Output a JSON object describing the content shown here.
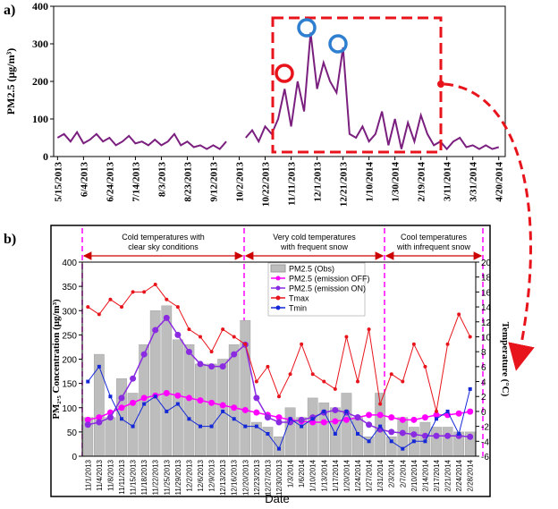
{
  "chart_data": [
    {
      "type": "line",
      "panel": "a)",
      "ylabel": "PM2.5 (μg/m³)",
      "x": [
        "5/15/2013",
        "5/20/2013",
        "5/25/2013",
        "5/30/2013",
        "6/4/2013",
        "6/9/2013",
        "6/14/2013",
        "6/19/2013",
        "6/24/2013",
        "6/29/2013",
        "7/4/2013",
        "7/9/2013",
        "7/14/2013",
        "7/19/2013",
        "7/24/2013",
        "7/29/2013",
        "8/3/2013",
        "8/8/2013",
        "8/13/2013",
        "8/18/2013",
        "8/23/2013",
        "8/28/2013",
        "9/2/2013",
        "9/7/2013",
        "9/12/2013",
        "9/17/2013",
        "9/22/2013",
        "9/27/2013",
        "10/2/2013",
        "10/7/2013",
        "10/12/2013",
        "10/17/2013",
        "10/22/2013",
        "10/27/2013",
        "11/1/2013",
        "11/6/2013",
        "11/11/2013",
        "11/16/2013",
        "11/21/2013",
        "11/26/2013",
        "12/1/2013",
        "12/6/2013",
        "12/11/2013",
        "12/16/2013",
        "12/21/2013",
        "12/26/2013",
        "12/31/2013",
        "1/5/2014",
        "1/10/2014",
        "1/15/2014",
        "1/20/2014",
        "1/25/2014",
        "1/30/2014",
        "2/4/2014",
        "2/9/2014",
        "2/14/2014",
        "2/19/2014",
        "2/24/2014",
        "3/1/2014",
        "3/6/2014",
        "3/11/2014",
        "3/16/2014",
        "3/21/2014",
        "3/26/2014",
        "3/31/2014",
        "4/5/2014",
        "4/10/2014",
        "4/15/2014",
        "4/20/2014"
      ],
      "series": [
        {
          "color": "#7b1f7f",
          "values": [
            50,
            60,
            40,
            65,
            35,
            45,
            60,
            40,
            50,
            30,
            40,
            55,
            35,
            40,
            30,
            45,
            30,
            40,
            60,
            30,
            40,
            25,
            30,
            20,
            30,
            20,
            40,
            null,
            null,
            50,
            70,
            40,
            80,
            60,
            100,
            180,
            80,
            200,
            120,
            330,
            180,
            250,
            200,
            170,
            290,
            60,
            50,
            80,
            40,
            60,
            120,
            30,
            100,
            20,
            90,
            40,
            110,
            60,
            30,
            40,
            20,
            40,
            50,
            25,
            30,
            20,
            30,
            20,
            25
          ]
        }
      ],
      "xlim": [
        "5/12/2013",
        "4/25/2014"
      ],
      "xticks": [
        "5/15/2013",
        "6/4/2013",
        "6/24/2013",
        "7/14/2013",
        "8/3/2013",
        "8/23/2013",
        "9/12/2013",
        "10/2/2013",
        "10/22/2013",
        "11/11/2013",
        "12/1/2013",
        "12/21/2013",
        "1/10/2014",
        "1/30/2014",
        "2/19/2014",
        "3/11/2014",
        "3/31/2014",
        "4/20/2014"
      ],
      "ylim": [
        0,
        400
      ],
      "yticks": [
        0,
        100,
        200,
        300,
        400
      ]
    },
    {
      "type": "combo",
      "panel": "b)",
      "ylabel": "PM₂.₅ Concentration (μg/m³)",
      "y2label": "Temperature (°C)",
      "xlabel": "Date",
      "annotations": [
        [
          "Cold temperatures with",
          "clear sky conditions"
        ],
        [
          "Very cold temperatures",
          "with frequent snow"
        ],
        [
          "Cool temperatures",
          "with infrequent snow"
        ]
      ],
      "categories": [
        "11/1/2013",
        "11/4/2013",
        "11/8/2013",
        "11/11/2013",
        "11/15/2013",
        "11/18/2013",
        "11/22/2013",
        "11/25/2013",
        "11/29/2013",
        "12/2/2013",
        "12/6/2013",
        "12/9/2013",
        "12/13/2013",
        "12/16/2013",
        "12/20/2013",
        "12/23/2013",
        "12/27/2013",
        "12/30/2013",
        "1/3/2014",
        "1/6/2014",
        "1/10/2014",
        "1/13/2014",
        "1/17/2014",
        "1/20/2014",
        "1/24/2014",
        "1/27/2014",
        "1/31/2014",
        "2/3/2014",
        "2/7/2014",
        "2/10/2014",
        "2/14/2014",
        "2/17/2014",
        "2/21/2014",
        "2/24/2014",
        "2/28/2014"
      ],
      "series": [
        {
          "name": "PM2.5 (Obs)",
          "type": "bar",
          "color": "#bdbdbd",
          "values": [
            80,
            210,
            80,
            160,
            130,
            230,
            300,
            310,
            240,
            230,
            190,
            190,
            200,
            230,
            280,
            70,
            60,
            40,
            100,
            80,
            120,
            110,
            100,
            130,
            80,
            40,
            130,
            40,
            80,
            60,
            70,
            60,
            60,
            50,
            50
          ]
        },
        {
          "name": "PM2.5 (emission OFF)",
          "type": "line",
          "color": "#ff00ff",
          "values": [
            75,
            80,
            90,
            100,
            110,
            120,
            125,
            130,
            125,
            120,
            115,
            110,
            105,
            100,
            95,
            90,
            85,
            80,
            75,
            72,
            70,
            70,
            72,
            75,
            80,
            85,
            85,
            80,
            75,
            75,
            80,
            85,
            85,
            88,
            92
          ]
        },
        {
          "name": "PM2.5 (emission ON)",
          "type": "line",
          "color": "#8a2be2",
          "values": [
            65,
            70,
            80,
            120,
            160,
            210,
            260,
            285,
            250,
            215,
            190,
            185,
            185,
            210,
            230,
            120,
            80,
            70,
            70,
            75,
            80,
            90,
            95,
            90,
            80,
            65,
            55,
            50,
            48,
            45,
            42,
            42,
            42,
            42,
            40
          ]
        },
        {
          "name": "Tmax",
          "type": "line",
          "axis": "y2",
          "color": "#e8141c",
          "values": [
            14,
            13,
            15,
            14,
            16,
            16,
            17,
            15,
            14,
            11,
            10,
            8,
            11,
            10,
            9,
            4,
            6,
            2,
            5,
            9,
            5,
            4,
            3,
            10,
            4,
            11,
            1,
            5,
            4,
            9,
            6,
            0,
            9,
            13,
            10
          ]
        },
        {
          "name": "Tmin",
          "type": "line",
          "axis": "y2",
          "color": "#1428d8",
          "values": [
            4,
            6,
            2,
            -1,
            -2,
            1,
            2,
            0,
            1,
            -1,
            -2,
            -2,
            0,
            -1,
            -2,
            -2,
            -3,
            -5,
            -1,
            -2,
            -1,
            0,
            -3,
            0,
            -3,
            -4,
            -2,
            -4,
            -5,
            -4,
            -4,
            -1,
            0,
            -3,
            3
          ]
        }
      ],
      "ylim": [
        0,
        400
      ],
      "yticks": [
        0,
        50,
        100,
        150,
        200,
        250,
        300,
        350,
        400
      ],
      "y2lim": [
        -6,
        20
      ],
      "y2ticks": [
        -6,
        -4,
        -2,
        0,
        2,
        4,
        6,
        8,
        10,
        12,
        14,
        16,
        18,
        20
      ]
    }
  ]
}
